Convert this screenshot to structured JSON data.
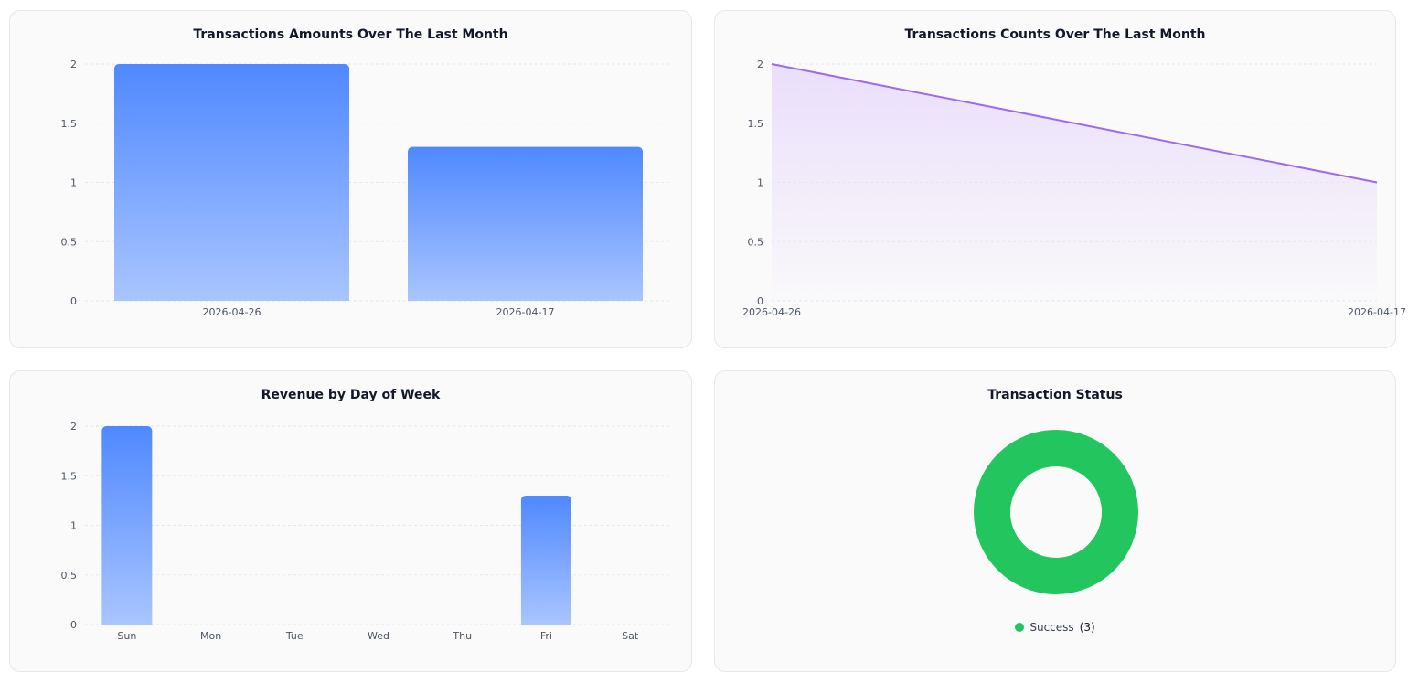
{
  "colors": {
    "bar_top": "#4f88ff",
    "bar_bottom": "#a9c5ff",
    "line": "#9b6af0",
    "area_top": "#e9ddfb",
    "success": "#22c55e",
    "grid": "#e5e7eb"
  },
  "chart_data": [
    {
      "id": "amounts",
      "type": "bar",
      "title": "Transactions Amounts Over The Last Month",
      "categories": [
        "2026-04-26",
        "2026-04-17"
      ],
      "values": [
        2,
        1.3
      ],
      "yticks": [
        "0",
        "0.5",
        "1",
        "1.5",
        "2"
      ],
      "ylim": [
        0,
        2
      ],
      "grid": true
    },
    {
      "id": "counts",
      "type": "area",
      "title": "Transactions Counts Over The Last Month",
      "categories": [
        "2026-04-26",
        "2026-04-17"
      ],
      "values": [
        2,
        1
      ],
      "yticks": [
        "0",
        "0.5",
        "1",
        "1.5",
        "2"
      ],
      "ylim": [
        0,
        2
      ],
      "grid": true
    },
    {
      "id": "weekday",
      "type": "bar",
      "title": "Revenue by Day of Week",
      "categories": [
        "Sun",
        "Mon",
        "Tue",
        "Wed",
        "Thu",
        "Fri",
        "Sat"
      ],
      "values": [
        2,
        0,
        0,
        0,
        0,
        1.3,
        0
      ],
      "yticks": [
        "0",
        "0.5",
        "1",
        "1.5",
        "2"
      ],
      "ylim": [
        0,
        2
      ],
      "grid": true
    },
    {
      "id": "status",
      "type": "pie",
      "title": "Transaction Status",
      "slices": [
        {
          "label": "Success",
          "value": 3,
          "count_label": "(3)"
        }
      ],
      "legend": "bottom"
    }
  ]
}
